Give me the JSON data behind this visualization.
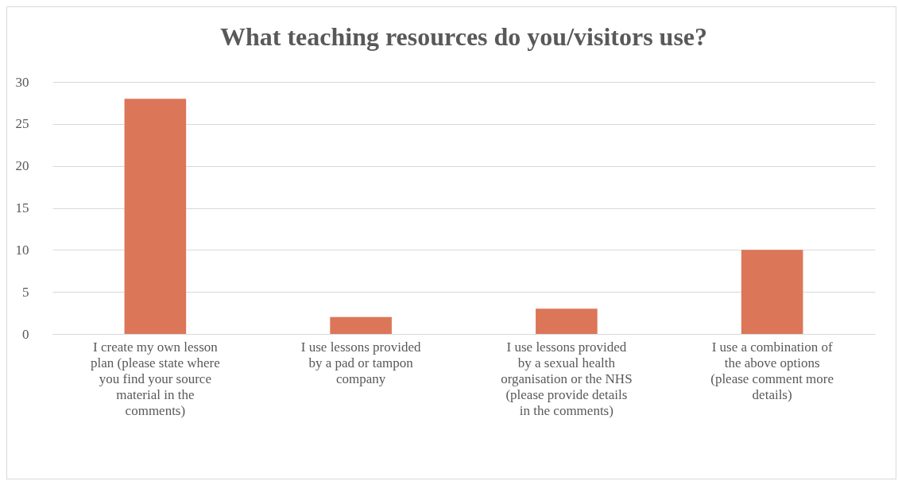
{
  "chart_data": {
    "type": "bar",
    "title": "What teaching resources do you/visitors use?",
    "categories": [
      "I create my own lesson plan (please state where you find your source material in the comments)",
      "I use lessons provided by a pad or tampon company",
      "I use lessons provided by a sexual health organisation or the NHS (please provide details in the comments)",
      "I use a combination of the above options (please comment more details)"
    ],
    "values": [
      28,
      2,
      3,
      10
    ],
    "color": "#dc7658",
    "ylim": [
      0,
      30
    ],
    "yticks": [
      0,
      5,
      10,
      15,
      20,
      25,
      30
    ],
    "grid": "y"
  }
}
